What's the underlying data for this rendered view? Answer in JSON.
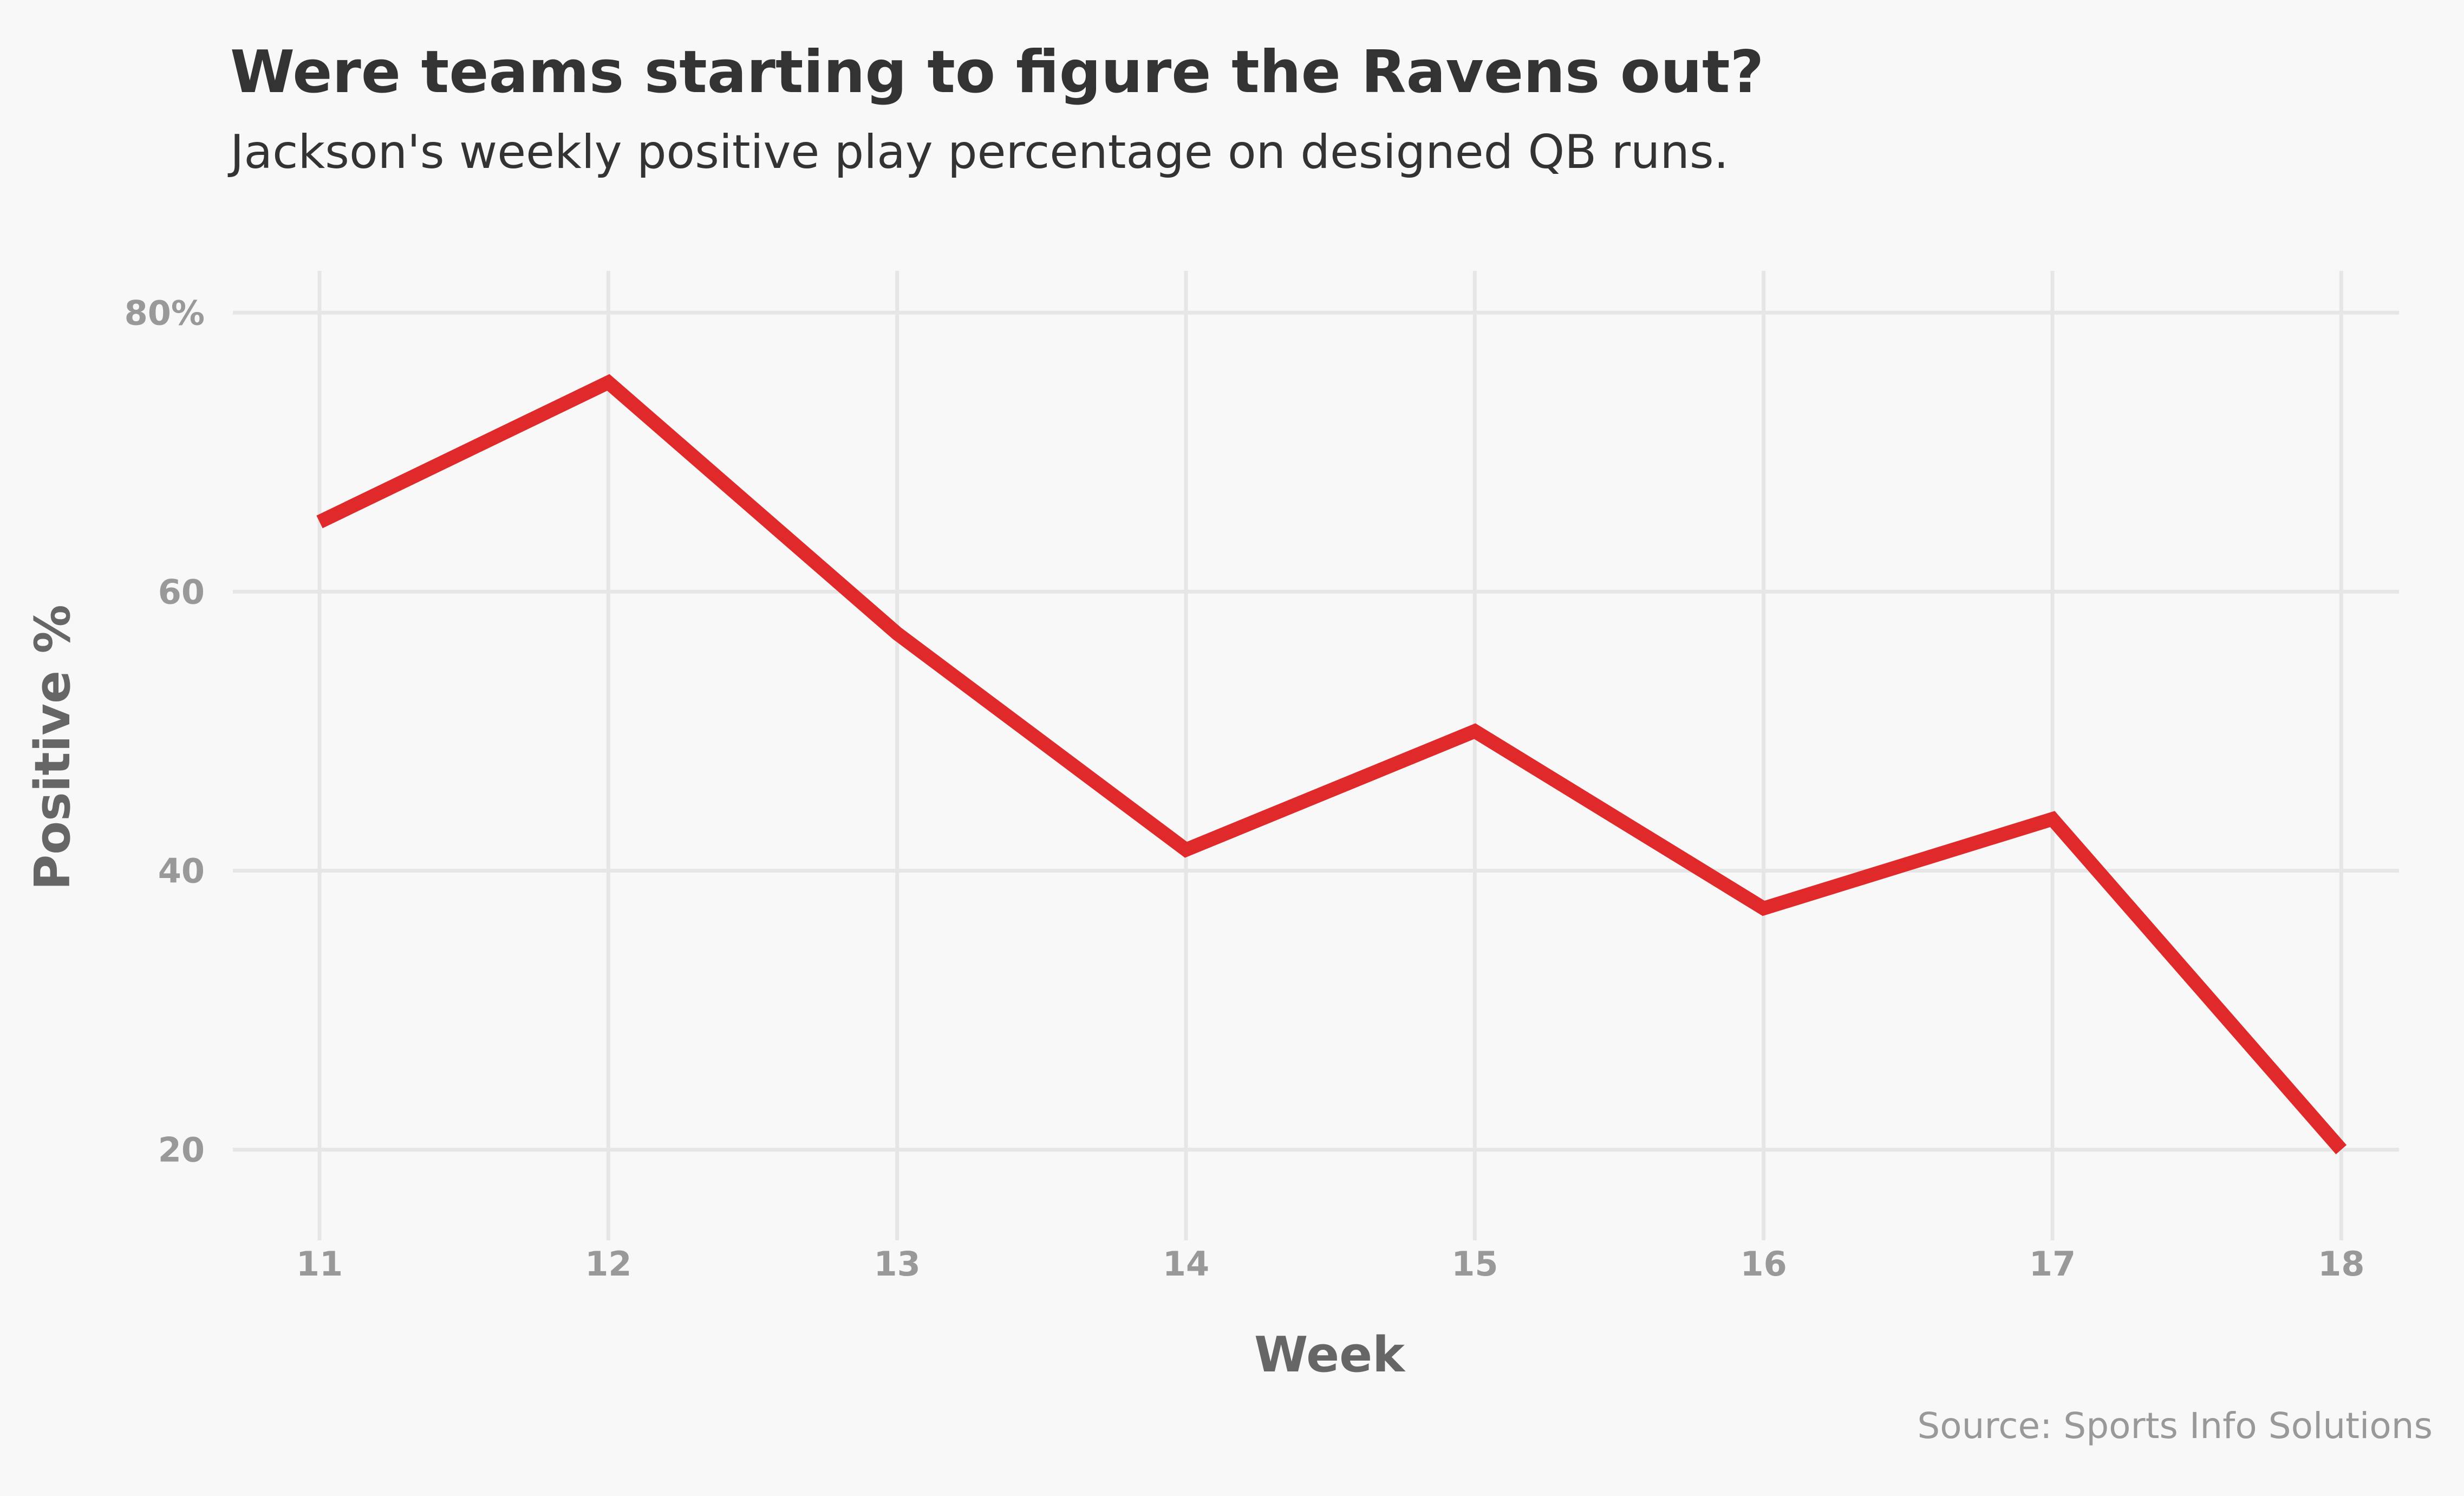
{
  "colors": {
    "background": "#f8f8f8",
    "line": "#e0292b",
    "grid": "#e6e6e6",
    "title": "#333333",
    "tick": "#999999",
    "axis_title": "#666666"
  },
  "chart_data": {
    "type": "line",
    "title": "Were teams starting to figure the Ravens out?",
    "subtitle": "Jackson's weekly positive play percentage on designed QB runs.",
    "xlabel": "Week",
    "ylabel": "Positive %",
    "caption": "Source: Sports Info Solutions",
    "x": [
      11,
      12,
      13,
      14,
      15,
      16,
      17,
      18
    ],
    "x_tick_labels": [
      "11",
      "12",
      "13",
      "14",
      "15",
      "16",
      "17",
      "18"
    ],
    "y_ticks": [
      20,
      40,
      60,
      80
    ],
    "y_tick_labels": [
      "20",
      "40",
      "60",
      "80%"
    ],
    "xlim": [
      10.7,
      18.2
    ],
    "ylim": [
      13.5,
      83
    ],
    "grid": true,
    "legend": "none",
    "series": [
      {
        "values": [
          65,
          75,
          57,
          41.5,
          50,
          37.3,
          43.7,
          20
        ]
      }
    ]
  }
}
